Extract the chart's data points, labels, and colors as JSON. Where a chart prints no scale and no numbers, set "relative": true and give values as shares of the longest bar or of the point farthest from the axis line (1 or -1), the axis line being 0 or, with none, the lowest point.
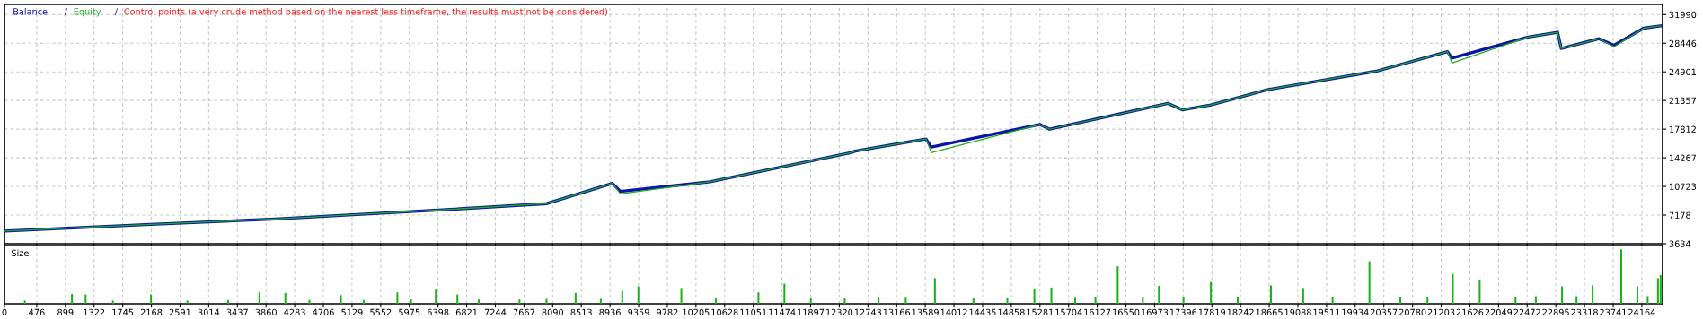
{
  "chart_data": [
    {
      "type": "line",
      "legend": "top left",
      "grid": true,
      "tick_labels": "y",
      "line_style": "solid",
      "annotations": [
        "/",
        "/",
        "Control points (a very crude method based on the nearest less timeframe, the results must not be considered)"
      ],
      "xlim": [
        0,
        24470
      ],
      "ylim": [
        3634,
        33240
      ],
      "xticks": [
        0,
        476,
        899,
        1322,
        1745,
        2168,
        2591,
        3014,
        3437,
        3860,
        4283,
        4706,
        5129,
        5552,
        5975,
        6398,
        6821,
        7244,
        7667,
        8090,
        8513,
        8936,
        9359,
        9782,
        10205,
        10628,
        11051,
        11474,
        11897,
        12320,
        12743,
        13166,
        13589,
        14012,
        14435,
        14858,
        15281,
        15704,
        16127,
        16550,
        16973,
        17396,
        17819,
        18242,
        18665,
        19088,
        19511,
        19934,
        20357,
        20780,
        21203,
        21626,
        22049,
        22472,
        22895,
        23318,
        23741,
        24164
      ],
      "yticks": [
        3634,
        7178,
        10723,
        14267,
        17812,
        21357,
        24901,
        28446,
        31990
      ],
      "series": [
        {
          "name": "Balance",
          "color": "#0a14a8",
          "x": [
            0,
            2077,
            4000,
            6406,
            8006,
            8971,
            9090,
            10413,
            12488,
            12554,
            13599,
            13678,
            15278,
            15424,
            17169,
            17381,
            17804,
            18637,
            20250,
            21295,
            21361,
            22485,
            22921,
            22974,
            23530,
            23754,
            24190,
            24441
          ],
          "values": [
            5200,
            6000,
            6700,
            7800,
            8600,
            11100,
            10100,
            11300,
            14900,
            15100,
            16600,
            15600,
            18400,
            17800,
            21000,
            20200,
            20800,
            22700,
            25000,
            27400,
            26600,
            29200,
            29800,
            27800,
            29000,
            28200,
            30300,
            30600
          ]
        },
        {
          "name": "Equity",
          "color": "#1fae1f",
          "x": [
            0,
            2077,
            4000,
            6406,
            8006,
            8971,
            9090,
            10413,
            12488,
            12554,
            13599,
            13678,
            15278,
            15424,
            17169,
            17381,
            17804,
            18637,
            20250,
            21295,
            21361,
            22485,
            22921,
            22974,
            23530,
            23754,
            24190,
            24441
          ],
          "values": [
            5200,
            6000,
            6700,
            7800,
            8600,
            11100,
            9800,
            11300,
            14900,
            15100,
            16600,
            14900,
            18400,
            17800,
            21000,
            20200,
            20800,
            22700,
            25000,
            27400,
            26000,
            29200,
            29800,
            27800,
            29000,
            28000,
            30300,
            30600
          ]
        }
      ]
    },
    {
      "type": "bar",
      "title": "Size",
      "relative": true,
      "grid": true,
      "tick_labels": "x",
      "color": "#19b219",
      "xlim": [
        0,
        24470
      ],
      "xticks": [
        0,
        476,
        899,
        1322,
        1745,
        2168,
        2591,
        3014,
        3437,
        3860,
        4283,
        4706,
        5129,
        5552,
        5975,
        6398,
        6821,
        7244,
        7667,
        8090,
        8513,
        8936,
        9359,
        9782,
        10205,
        10628,
        11051,
        11474,
        11897,
        12320,
        12743,
        13166,
        13589,
        14012,
        14435,
        14858,
        15281,
        15704,
        16127,
        16550,
        16973,
        17396,
        17819,
        18242,
        18665,
        19088,
        19511,
        19934,
        20357,
        20780,
        21203,
        21626,
        22049,
        22472,
        22895,
        23318,
        23741,
        24164
      ],
      "x": [
        300,
        996,
        1197,
        1600,
        2162,
        2700,
        3300,
        3762,
        4145,
        4500,
        4965,
        5300,
        5798,
        6000,
        6366,
        6684,
        7000,
        7600,
        8000,
        8429,
        8800,
        9117,
        9355,
        9989,
        10500,
        11127,
        11510,
        11900,
        12400,
        12900,
        13300,
        13731,
        14300,
        14800,
        15199,
        15450,
        15800,
        16100,
        16429,
        16800,
        17037,
        17400,
        17804,
        18200,
        18690,
        19166,
        19600,
        20144,
        20600,
        21000,
        21374,
        21771,
        22300,
        22600,
        22987,
        23200,
        23437,
        23860,
        24098,
        24250,
        24402,
        24441
      ],
      "values": [
        0.06,
        0.18,
        0.17,
        0.06,
        0.17,
        0.06,
        0.07,
        0.21,
        0.2,
        0.07,
        0.16,
        0.07,
        0.21,
        0.08,
        0.26,
        0.17,
        0.08,
        0.08,
        0.09,
        0.2,
        0.09,
        0.24,
        0.32,
        0.29,
        0.1,
        0.21,
        0.37,
        0.1,
        0.1,
        0.11,
        0.11,
        0.47,
        0.1,
        0.1,
        0.27,
        0.3,
        0.11,
        0.12,
        0.69,
        0.12,
        0.33,
        0.12,
        0.4,
        0.12,
        0.34,
        0.29,
        0.13,
        0.78,
        0.13,
        0.13,
        0.55,
        0.43,
        0.13,
        0.14,
        0.32,
        0.14,
        0.34,
        1.0,
        0.32,
        0.14,
        0.47,
        0.53
      ]
    }
  ]
}
